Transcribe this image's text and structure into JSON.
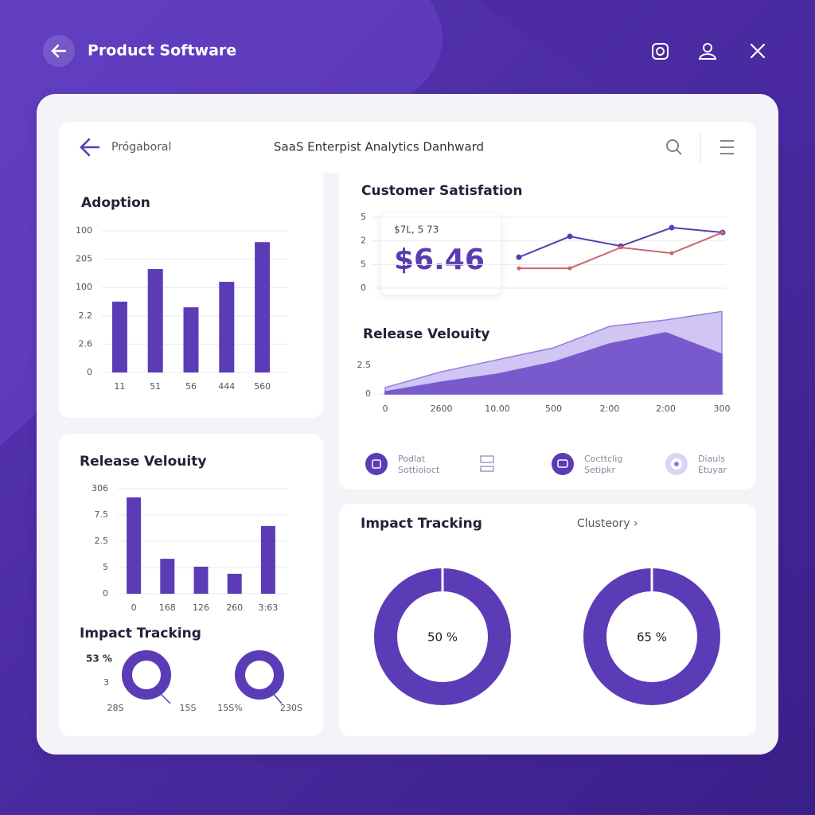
{
  "app_bar": {
    "title": "Product Software"
  },
  "dashboard": {
    "breadcrumb": "Prógaboral",
    "title": "SaaS Enterpist Analytics Danhward"
  },
  "chart_data": [
    {
      "type": "bar",
      "title": "Adoption",
      "color": "#5b3cb6",
      "grid": true,
      "categories": [
        "11",
        "51",
        "56",
        "444",
        "560"
      ],
      "values": [
        50,
        73,
        46,
        64,
        92
      ],
      "ylim": [
        0,
        100
      ],
      "yticks": [
        0,
        {
          "value": 20,
          "label": "2.6"
        },
        {
          "value": 40,
          "label": "2.2"
        },
        {
          "value": 60,
          "label": "100"
        },
        {
          "value": 80,
          "label": "205"
        },
        100
      ]
    },
    {
      "type": "line",
      "title": "Customer Satisfation",
      "grid": true,
      "categories": [
        null,
        null,
        null,
        null,
        null
      ],
      "series": [
        {
          "color": "#5b3cb6",
          "values": [
            1.31,
            2.19,
            1.78,
            2.56,
            2.36
          ]
        },
        {
          "color": "#d0636c",
          "values": [
            0.84,
            0.84,
            1.72,
            1.48,
            2.36
          ]
        }
      ],
      "ylim": [
        0,
        3
      ],
      "yticks": [
        0,
        {
          "value": 1,
          "label": "5"
        },
        2,
        {
          "value": 3,
          "label": "5"
        }
      ]
    },
    {
      "type": "area",
      "title": "Release Velouity",
      "grid": false,
      "categories": [
        "0",
        "2600",
        "10.00",
        "500",
        "2:00",
        "2:00",
        "300"
      ],
      "series": [
        {
          "color": "#cbbff2",
          "values": [
            0.56,
            1.94,
            2.99,
            4.03,
            5.9,
            6.46,
            7.2
          ]
        },
        {
          "color": "#7455cc",
          "values": [
            0.2,
            1.04,
            1.74,
            2.78,
            4.38,
            5.35,
            3.47
          ]
        }
      ],
      "ylim": [
        0,
        7.5
      ],
      "yticks": [
        0,
        2.5
      ]
    },
    {
      "type": "bar",
      "title": "Release Velouity",
      "color": "#5b3cb6",
      "grid": true,
      "categories": [
        "0",
        "168",
        "126",
        "260",
        "3:63"
      ],
      "values": [
        3.67,
        1.33,
        1.03,
        0.76,
        2.58
      ],
      "ylim": [
        0,
        4
      ],
      "yticks": [
        0,
        {
          "value": 1,
          "label": "5"
        },
        {
          "value": 2,
          "label": "2.5"
        },
        {
          "value": 3,
          "label": "7.5"
        },
        {
          "value": 4,
          "label": "306"
        }
      ]
    }
  ],
  "satisfaction_callout": {
    "caption": "$7L, 5 73",
    "value": "$6.46"
  },
  "legend_items": [
    {
      "line1": "Podlat",
      "line2": "Sottioioct"
    },
    {
      "line1": "Cocttclig",
      "line2": "Setipkr"
    },
    {
      "line1": "Diauls",
      "line2": "Etuyar"
    }
  ],
  "impact_small": {
    "title": "Impact Tracking",
    "labels": [
      "53 %",
      "3",
      "28S",
      "15S",
      "15S%",
      "230S"
    ]
  },
  "impact_large": {
    "title": "Impact Tracking",
    "filter": "Clusteory ›",
    "donut_labels": [
      "50 %",
      "65 %"
    ]
  }
}
